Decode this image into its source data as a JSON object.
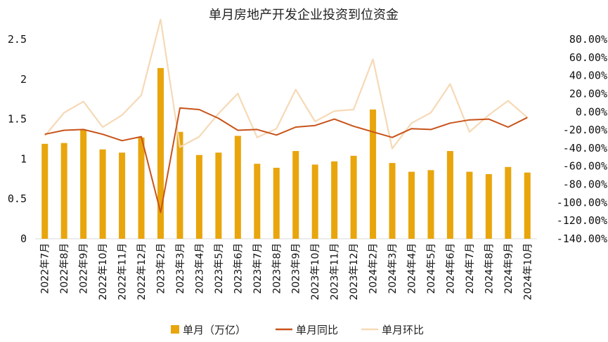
{
  "chart_data": {
    "type": "bar+line",
    "title": "单月房地产开发企业投资到位资金",
    "categories": [
      "2022年7月",
      "2022年8月",
      "2022年9月",
      "2022年10月",
      "2022年11月",
      "2022年12月",
      "2023年2月",
      "2023年3月",
      "2023年4月",
      "2023年5月",
      "2023年6月",
      "2023年7月",
      "2023年8月",
      "2023年9月",
      "2023年10月",
      "2023年11月",
      "2023年12月",
      "2024年2月",
      "2024年3月",
      "2024年4月",
      "2024年5月",
      "2024年6月",
      "2024年7月",
      "2024年8月",
      "2024年9月",
      "2024年10月"
    ],
    "left_axis": {
      "ylim": [
        0,
        2.5
      ],
      "ticks": [
        "0",
        "0.5",
        "1",
        "1.5",
        "2",
        "2.5"
      ]
    },
    "right_axis": {
      "ylim": [
        -140,
        80
      ],
      "ticks": [
        "80.00%",
        "60.00%",
        "40.00%",
        "20.00%",
        "0.00%",
        "-20.00%",
        "-40.00%",
        "-60.00%",
        "-80.00%",
        "-100.00%",
        "-120.00%",
        "-140.00%"
      ]
    },
    "series": [
      {
        "name": "单月（万亿）",
        "type": "bar",
        "axis": "left",
        "color": "#E8A50C",
        "values": [
          1.19,
          1.2,
          1.36,
          1.12,
          1.08,
          1.27,
          2.14,
          1.34,
          1.05,
          1.08,
          1.29,
          0.94,
          0.89,
          1.1,
          0.93,
          0.97,
          1.04,
          1.62,
          0.95,
          0.84,
          0.86,
          1.1,
          0.84,
          0.81,
          0.9,
          0.83
        ]
      },
      {
        "name": "单月同比",
        "type": "line",
        "axis": "left",
        "color": "#C8531A",
        "values": [
          1.31,
          1.36,
          1.37,
          1.31,
          1.23,
          1.28,
          0.33,
          1.64,
          1.62,
          1.51,
          1.36,
          1.37,
          1.3,
          1.4,
          1.42,
          1.5,
          1.41,
          1.34,
          1.27,
          1.38,
          1.37,
          1.45,
          1.49,
          1.5,
          1.4,
          1.52
        ]
      },
      {
        "name": "单月环比",
        "type": "line",
        "axis": "left",
        "color": "#F6D9B6",
        "values": [
          1.29,
          1.58,
          1.72,
          1.4,
          1.55,
          1.8,
          2.75,
          1.15,
          1.28,
          1.57,
          1.82,
          1.27,
          1.38,
          1.87,
          1.47,
          1.6,
          1.62,
          2.25,
          1.13,
          1.45,
          1.58,
          1.94,
          1.34,
          1.55,
          1.73,
          1.52
        ]
      }
    ],
    "legend_position": "bottom",
    "grid": false
  }
}
